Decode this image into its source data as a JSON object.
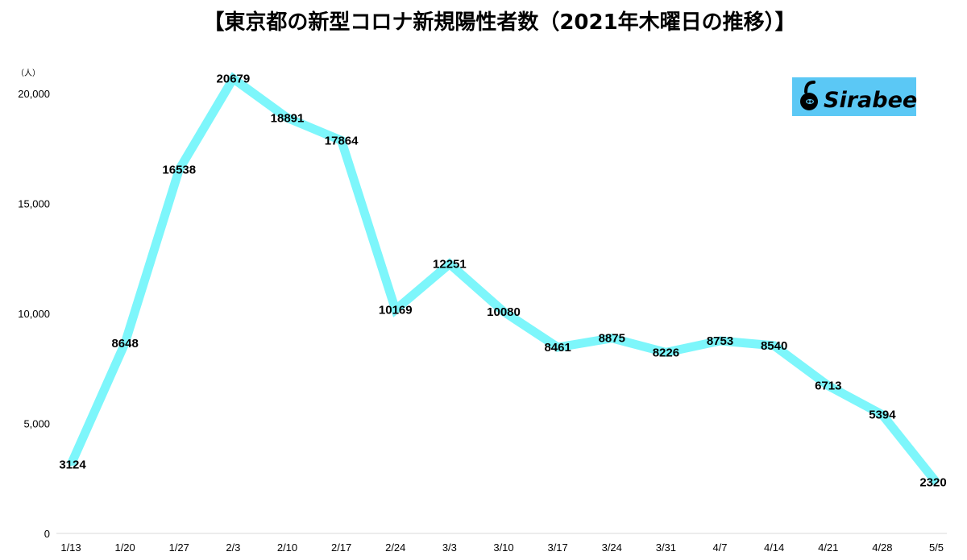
{
  "chart_data": {
    "type": "line",
    "title": "【東京都の新型コロナ新規陽性者数（2021年木曜日の推移）】",
    "ylabel": "（人）",
    "xlabel": "",
    "categories": [
      "1/13",
      "1/20",
      "1/27",
      "2/3",
      "2/10",
      "2/17",
      "2/24",
      "3/3",
      "3/10",
      "3/17",
      "3/24",
      "3/31",
      "4/7",
      "4/14",
      "4/21",
      "4/28",
      "5/5"
    ],
    "series": [
      {
        "values": [
          3124,
          8648,
          16538,
          20679,
          18891,
          17864,
          10169,
          12251,
          10080,
          8461,
          8875,
          8226,
          8753,
          8540,
          6713,
          5394,
          2320
        ]
      }
    ],
    "ylim": [
      0,
      20000
    ],
    "yticks": [
      0,
      5000,
      10000,
      15000,
      20000
    ],
    "ytick_labels": [
      "0",
      "5,000",
      "10,000",
      "15,000",
      "20,000"
    ],
    "grid": false,
    "legend": "none",
    "data_labels": true
  },
  "colors": {
    "line": "#7df6fb",
    "logo_background": "#5bc8f5",
    "text": "#000000",
    "axis": "#d9d9d9"
  },
  "logo": {
    "text": "Sirabee",
    "icon": "sirabee-logo-icon"
  }
}
